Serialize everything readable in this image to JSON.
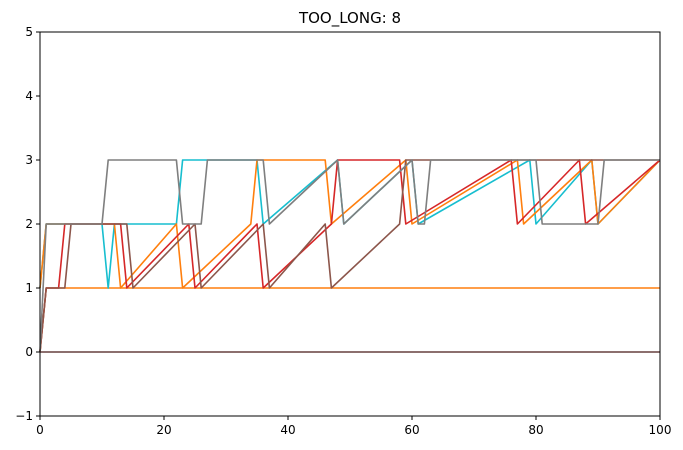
{
  "chart_data": {
    "type": "line",
    "title": "TOO_LONG: 8",
    "xlabel": "",
    "ylabel": "",
    "xlim": [
      0,
      100
    ],
    "ylim": [
      -1,
      5
    ],
    "xticks": [
      0,
      20,
      40,
      60,
      80,
      100
    ],
    "yticks": [
      -1,
      0,
      1,
      2,
      3,
      4,
      5
    ],
    "grid": false,
    "legend": "none",
    "series": [
      {
        "color": "#1f77b4",
        "x": [
          0,
          100
        ],
        "y": [
          0,
          0
        ]
      },
      {
        "color": "#ff7f0e",
        "x": [
          0,
          1,
          100
        ],
        "y": [
          0,
          1,
          1
        ]
      },
      {
        "color": "#17becf",
        "x": [
          0,
          1,
          10,
          11,
          12,
          22,
          23,
          35,
          36,
          48,
          49,
          60,
          61,
          79,
          80,
          89,
          90,
          100
        ],
        "y": [
          1,
          2,
          2,
          1,
          2,
          2,
          3,
          3,
          2,
          3,
          2,
          3,
          2,
          3,
          2,
          3,
          2,
          3
        ]
      },
      {
        "color": "#ff7f0e",
        "x": [
          0,
          1,
          12,
          13,
          22,
          23,
          34,
          35,
          46,
          47,
          59,
          60,
          77,
          78,
          89,
          90,
          100
        ],
        "y": [
          1,
          2,
          2,
          1,
          2,
          1,
          2,
          3,
          3,
          2,
          3,
          2,
          3,
          2,
          3,
          2,
          3
        ]
      },
      {
        "color": "#d62728",
        "x": [
          0,
          1,
          3,
          4,
          13,
          14,
          24,
          25,
          35,
          36,
          47,
          48,
          58,
          59,
          76,
          77,
          87,
          88,
          100
        ],
        "y": [
          0,
          1,
          1,
          2,
          2,
          1,
          2,
          1,
          2,
          1,
          2,
          3,
          3,
          2,
          3,
          2,
          3,
          2,
          3
        ]
      },
      {
        "color": "#8c564b",
        "x": [
          0,
          1,
          4,
          5,
          14,
          15,
          25,
          26,
          36,
          37,
          46,
          47,
          58,
          59,
          100
        ],
        "y": [
          0,
          1,
          1,
          2,
          2,
          1,
          2,
          1,
          2,
          1,
          2,
          1,
          2,
          3,
          3
        ]
      },
      {
        "color": "#7f7f7f",
        "x": [
          0,
          1,
          10,
          11,
          22,
          23,
          26,
          27,
          36,
          37,
          48,
          49,
          60,
          61,
          62,
          63,
          80,
          81,
          90,
          91,
          100
        ],
        "y": [
          0,
          2,
          2,
          3,
          3,
          2,
          2,
          3,
          3,
          2,
          3,
          2,
          3,
          2,
          2,
          3,
          3,
          2,
          2,
          3,
          3
        ]
      },
      {
        "color": "#8c564b",
        "x": [
          0,
          100
        ],
        "y": [
          0,
          0
        ]
      }
    ]
  }
}
